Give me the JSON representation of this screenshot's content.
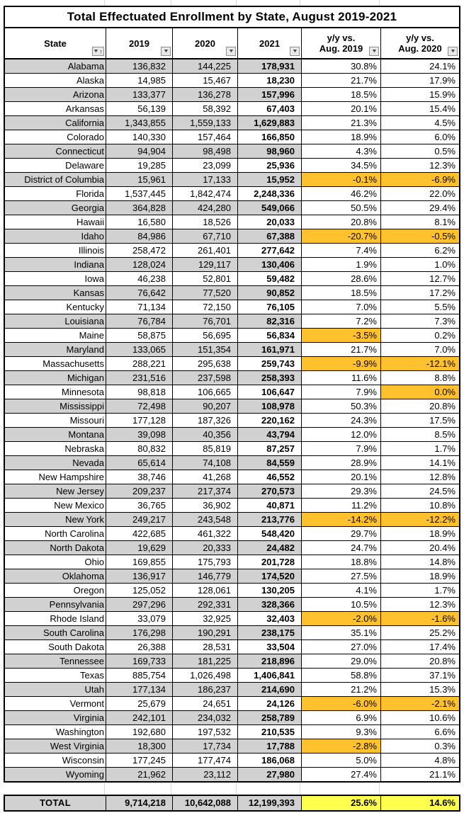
{
  "title": "Total Effectuated Enrollment by State, August 2019-2021",
  "columns": {
    "state": {
      "label": "State"
    },
    "y2019": {
      "label": "2019"
    },
    "y2020": {
      "label": "2020"
    },
    "y2021": {
      "label": "2021"
    },
    "yy2019": {
      "line1": "y/y vs.",
      "line2": "Aug. 2019"
    },
    "yy2020": {
      "line1": "y/y vs.",
      "line2": "Aug. 2020"
    }
  },
  "icons": {
    "filter_dropdown": "▼",
    "sort_ascending": "↑"
  },
  "colors": {
    "row_shade": "#d1d1d1",
    "negative_highlight": "#ffc22e",
    "total_highlight": "#ffff4d",
    "table_border": "#000000",
    "faint_gridline": "#d9d9d9"
  },
  "rows": [
    {
      "state": "Alabama",
      "y2019": "136,832",
      "y2020": "144,225",
      "y2021": "178,931",
      "yy2019": "30.8%",
      "yy2020": "24.1%",
      "hl2019": false,
      "hl2020": false
    },
    {
      "state": "Alaska",
      "y2019": "14,985",
      "y2020": "15,467",
      "y2021": "18,230",
      "yy2019": "21.7%",
      "yy2020": "17.9%",
      "hl2019": false,
      "hl2020": false
    },
    {
      "state": "Arizona",
      "y2019": "133,377",
      "y2020": "136,278",
      "y2021": "157,996",
      "yy2019": "18.5%",
      "yy2020": "15.9%",
      "hl2019": false,
      "hl2020": false
    },
    {
      "state": "Arkansas",
      "y2019": "56,139",
      "y2020": "58,392",
      "y2021": "67,403",
      "yy2019": "20.1%",
      "yy2020": "15.4%",
      "hl2019": false,
      "hl2020": false
    },
    {
      "state": "California",
      "y2019": "1,343,855",
      "y2020": "1,559,133",
      "y2021": "1,629,883",
      "yy2019": "21.3%",
      "yy2020": "4.5%",
      "hl2019": false,
      "hl2020": false
    },
    {
      "state": "Colorado",
      "y2019": "140,330",
      "y2020": "157,464",
      "y2021": "166,850",
      "yy2019": "18.9%",
      "yy2020": "6.0%",
      "hl2019": false,
      "hl2020": false
    },
    {
      "state": "Connecticut",
      "y2019": "94,904",
      "y2020": "98,498",
      "y2021": "98,960",
      "yy2019": "4.3%",
      "yy2020": "0.5%",
      "hl2019": false,
      "hl2020": false
    },
    {
      "state": "Delaware",
      "y2019": "19,285",
      "y2020": "23,099",
      "y2021": "25,936",
      "yy2019": "34.5%",
      "yy2020": "12.3%",
      "hl2019": false,
      "hl2020": false
    },
    {
      "state": "District of Columbia",
      "y2019": "15,961",
      "y2020": "17,133",
      "y2021": "15,952",
      "yy2019": "-0.1%",
      "yy2020": "-6.9%",
      "hl2019": true,
      "hl2020": true
    },
    {
      "state": "Florida",
      "y2019": "1,537,445",
      "y2020": "1,842,474",
      "y2021": "2,248,336",
      "yy2019": "46.2%",
      "yy2020": "22.0%",
      "hl2019": false,
      "hl2020": false
    },
    {
      "state": "Georgia",
      "y2019": "364,828",
      "y2020": "424,280",
      "y2021": "549,066",
      "yy2019": "50.5%",
      "yy2020": "29.4%",
      "hl2019": false,
      "hl2020": false
    },
    {
      "state": "Hawaii",
      "y2019": "16,580",
      "y2020": "18,526",
      "y2021": "20,033",
      "yy2019": "20.8%",
      "yy2020": "8.1%",
      "hl2019": false,
      "hl2020": false
    },
    {
      "state": "Idaho",
      "y2019": "84,986",
      "y2020": "67,710",
      "y2021": "67,388",
      "yy2019": "-20.7%",
      "yy2020": "-0.5%",
      "hl2019": true,
      "hl2020": true
    },
    {
      "state": "Illinois",
      "y2019": "258,472",
      "y2020": "261,401",
      "y2021": "277,642",
      "yy2019": "7.4%",
      "yy2020": "6.2%",
      "hl2019": false,
      "hl2020": false
    },
    {
      "state": "Indiana",
      "y2019": "128,024",
      "y2020": "129,117",
      "y2021": "130,406",
      "yy2019": "1.9%",
      "yy2020": "1.0%",
      "hl2019": false,
      "hl2020": false
    },
    {
      "state": "Iowa",
      "y2019": "46,238",
      "y2020": "52,801",
      "y2021": "59,482",
      "yy2019": "28.6%",
      "yy2020": "12.7%",
      "hl2019": false,
      "hl2020": false
    },
    {
      "state": "Kansas",
      "y2019": "76,642",
      "y2020": "77,520",
      "y2021": "90,852",
      "yy2019": "18.5%",
      "yy2020": "17.2%",
      "hl2019": false,
      "hl2020": false
    },
    {
      "state": "Kentucky",
      "y2019": "71,134",
      "y2020": "72,150",
      "y2021": "76,105",
      "yy2019": "7.0%",
      "yy2020": "5.5%",
      "hl2019": false,
      "hl2020": false
    },
    {
      "state": "Louisiana",
      "y2019": "76,784",
      "y2020": "76,701",
      "y2021": "82,316",
      "yy2019": "7.2%",
      "yy2020": "7.3%",
      "hl2019": false,
      "hl2020": false
    },
    {
      "state": "Maine",
      "y2019": "58,875",
      "y2020": "56,695",
      "y2021": "56,834",
      "yy2019": "-3.5%",
      "yy2020": "0.2%",
      "hl2019": true,
      "hl2020": false
    },
    {
      "state": "Maryland",
      "y2019": "133,065",
      "y2020": "151,354",
      "y2021": "161,971",
      "yy2019": "21.7%",
      "yy2020": "7.0%",
      "hl2019": false,
      "hl2020": false
    },
    {
      "state": "Massachusetts",
      "y2019": "288,221",
      "y2020": "295,638",
      "y2021": "259,743",
      "yy2019": "-9.9%",
      "yy2020": "-12.1%",
      "hl2019": true,
      "hl2020": true
    },
    {
      "state": "Michigan",
      "y2019": "231,516",
      "y2020": "237,598",
      "y2021": "258,393",
      "yy2019": "11.6%",
      "yy2020": "8.8%",
      "hl2019": false,
      "hl2020": false
    },
    {
      "state": "Minnesota",
      "y2019": "98,818",
      "y2020": "106,665",
      "y2021": "106,647",
      "yy2019": "7.9%",
      "yy2020": "0.0%",
      "hl2019": false,
      "hl2020": true
    },
    {
      "state": "Mississippi",
      "y2019": "72,498",
      "y2020": "90,207",
      "y2021": "108,978",
      "yy2019": "50.3%",
      "yy2020": "20.8%",
      "hl2019": false,
      "hl2020": false
    },
    {
      "state": "Missouri",
      "y2019": "177,128",
      "y2020": "187,326",
      "y2021": "220,162",
      "yy2019": "24.3%",
      "yy2020": "17.5%",
      "hl2019": false,
      "hl2020": false
    },
    {
      "state": "Montana",
      "y2019": "39,098",
      "y2020": "40,356",
      "y2021": "43,794",
      "yy2019": "12.0%",
      "yy2020": "8.5%",
      "hl2019": false,
      "hl2020": false
    },
    {
      "state": "Nebraska",
      "y2019": "80,832",
      "y2020": "85,819",
      "y2021": "87,257",
      "yy2019": "7.9%",
      "yy2020": "1.7%",
      "hl2019": false,
      "hl2020": false
    },
    {
      "state": "Nevada",
      "y2019": "65,614",
      "y2020": "74,108",
      "y2021": "84,559",
      "yy2019": "28.9%",
      "yy2020": "14.1%",
      "hl2019": false,
      "hl2020": false
    },
    {
      "state": "New Hampshire",
      "y2019": "38,746",
      "y2020": "41,268",
      "y2021": "46,552",
      "yy2019": "20.1%",
      "yy2020": "12.8%",
      "hl2019": false,
      "hl2020": false
    },
    {
      "state": "New Jersey",
      "y2019": "209,237",
      "y2020": "217,374",
      "y2021": "270,573",
      "yy2019": "29.3%",
      "yy2020": "24.5%",
      "hl2019": false,
      "hl2020": false
    },
    {
      "state": "New Mexico",
      "y2019": "36,765",
      "y2020": "36,902",
      "y2021": "40,871",
      "yy2019": "11.2%",
      "yy2020": "10.8%",
      "hl2019": false,
      "hl2020": false
    },
    {
      "state": "New York",
      "y2019": "249,217",
      "y2020": "243,548",
      "y2021": "213,776",
      "yy2019": "-14.2%",
      "yy2020": "-12.2%",
      "hl2019": true,
      "hl2020": true
    },
    {
      "state": "North Carolina",
      "y2019": "422,685",
      "y2020": "461,322",
      "y2021": "548,420",
      "yy2019": "29.7%",
      "yy2020": "18.9%",
      "hl2019": false,
      "hl2020": false
    },
    {
      "state": "North Dakota",
      "y2019": "19,629",
      "y2020": "20,333",
      "y2021": "24,482",
      "yy2019": "24.7%",
      "yy2020": "20.4%",
      "hl2019": false,
      "hl2020": false
    },
    {
      "state": "Ohio",
      "y2019": "169,855",
      "y2020": "175,793",
      "y2021": "201,728",
      "yy2019": "18.8%",
      "yy2020": "14.8%",
      "hl2019": false,
      "hl2020": false
    },
    {
      "state": "Oklahoma",
      "y2019": "136,917",
      "y2020": "146,779",
      "y2021": "174,520",
      "yy2019": "27.5%",
      "yy2020": "18.9%",
      "hl2019": false,
      "hl2020": false
    },
    {
      "state": "Oregon",
      "y2019": "125,052",
      "y2020": "128,061",
      "y2021": "130,205",
      "yy2019": "4.1%",
      "yy2020": "1.7%",
      "hl2019": false,
      "hl2020": false
    },
    {
      "state": "Pennsylvania",
      "y2019": "297,296",
      "y2020": "292,331",
      "y2021": "328,366",
      "yy2019": "10.5%",
      "yy2020": "12.3%",
      "hl2019": false,
      "hl2020": false
    },
    {
      "state": "Rhode Island",
      "y2019": "33,079",
      "y2020": "32,925",
      "y2021": "32,403",
      "yy2019": "-2.0%",
      "yy2020": "-1.6%",
      "hl2019": true,
      "hl2020": true
    },
    {
      "state": "South Carolina",
      "y2019": "176,298",
      "y2020": "190,291",
      "y2021": "238,175",
      "yy2019": "35.1%",
      "yy2020": "25.2%",
      "hl2019": false,
      "hl2020": false
    },
    {
      "state": "South Dakota",
      "y2019": "26,388",
      "y2020": "28,531",
      "y2021": "33,504",
      "yy2019": "27.0%",
      "yy2020": "17.4%",
      "hl2019": false,
      "hl2020": false
    },
    {
      "state": "Tennessee",
      "y2019": "169,733",
      "y2020": "181,225",
      "y2021": "218,896",
      "yy2019": "29.0%",
      "yy2020": "20.8%",
      "hl2019": false,
      "hl2020": false
    },
    {
      "state": "Texas",
      "y2019": "885,754",
      "y2020": "1,026,498",
      "y2021": "1,406,841",
      "yy2019": "58.8%",
      "yy2020": "37.1%",
      "hl2019": false,
      "hl2020": false
    },
    {
      "state": "Utah",
      "y2019": "177,134",
      "y2020": "186,237",
      "y2021": "214,690",
      "yy2019": "21.2%",
      "yy2020": "15.3%",
      "hl2019": false,
      "hl2020": false
    },
    {
      "state": "Vermont",
      "y2019": "25,679",
      "y2020": "24,651",
      "y2021": "24,126",
      "yy2019": "-6.0%",
      "yy2020": "-2.1%",
      "hl2019": true,
      "hl2020": true
    },
    {
      "state": "Virginia",
      "y2019": "242,101",
      "y2020": "234,032",
      "y2021": "258,789",
      "yy2019": "6.9%",
      "yy2020": "10.6%",
      "hl2019": false,
      "hl2020": false
    },
    {
      "state": "Washington",
      "y2019": "192,680",
      "y2020": "197,532",
      "y2021": "210,535",
      "yy2019": "9.3%",
      "yy2020": "6.6%",
      "hl2019": false,
      "hl2020": false
    },
    {
      "state": "West Virginia",
      "y2019": "18,300",
      "y2020": "17,734",
      "y2021": "17,788",
      "yy2019": "-2.8%",
      "yy2020": "0.3%",
      "hl2019": true,
      "hl2020": false
    },
    {
      "state": "Wisconsin",
      "y2019": "177,245",
      "y2020": "177,474",
      "y2021": "186,068",
      "yy2019": "5.0%",
      "yy2020": "4.8%",
      "hl2019": false,
      "hl2020": false
    },
    {
      "state": "Wyoming",
      "y2019": "21,962",
      "y2020": "23,112",
      "y2021": "27,980",
      "yy2019": "27.4%",
      "yy2020": "21.1%",
      "hl2019": false,
      "hl2020": false
    }
  ],
  "total": {
    "label": "TOTAL",
    "y2019": "9,714,218",
    "y2020": "10,642,088",
    "y2021": "12,199,393",
    "yy2019": "25.6%",
    "yy2020": "14.6%"
  }
}
